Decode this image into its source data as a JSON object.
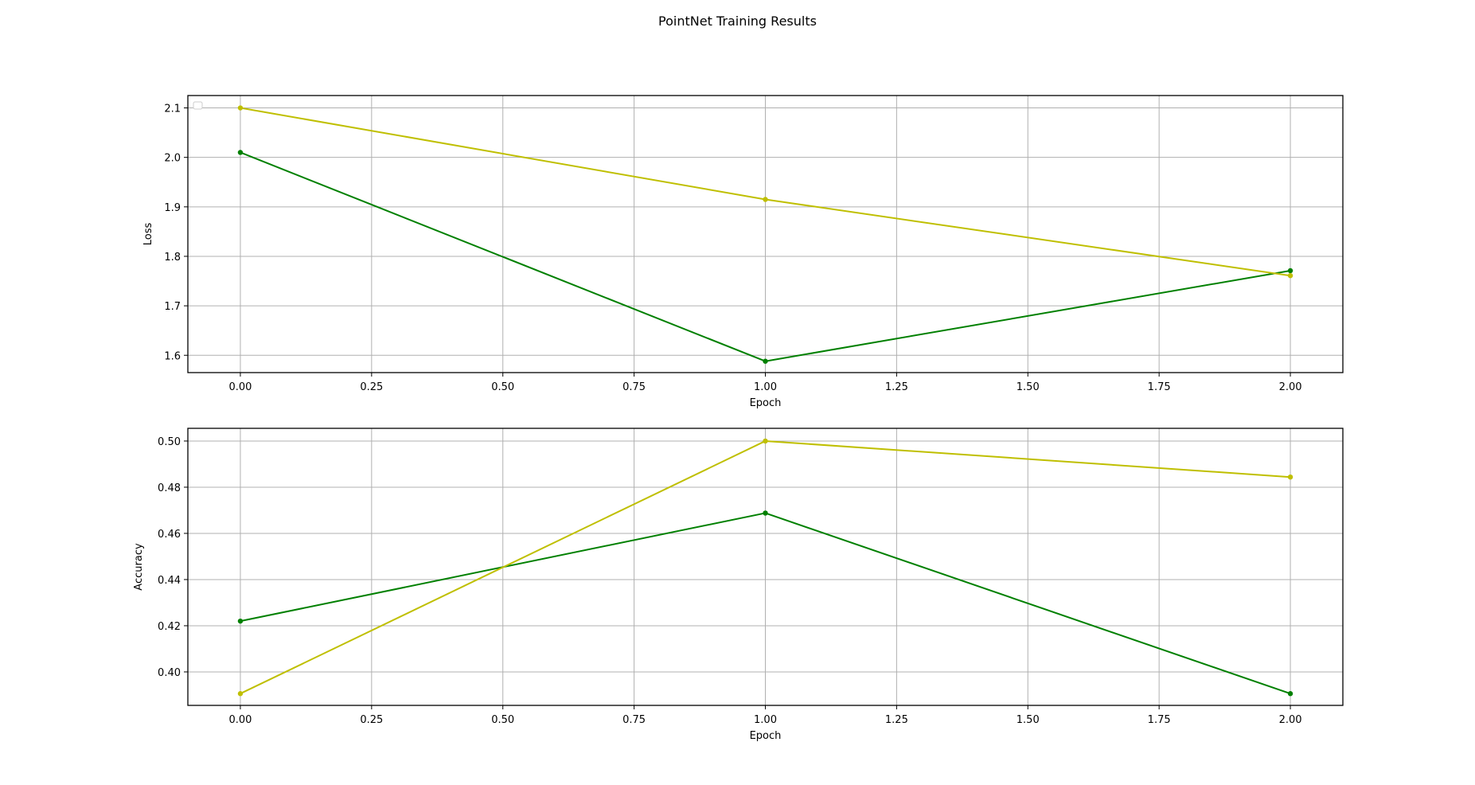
{
  "figure_title": "PointNet Training Results",
  "colors": {
    "series_a": "#008000",
    "series_b": "#bfbf00",
    "grid": "#b0b0b0"
  },
  "chart_data": [
    {
      "type": "line",
      "title": "",
      "xlabel": "Epoch",
      "ylabel": "Loss",
      "x": [
        0,
        1,
        2
      ],
      "xlim": [
        -0.1,
        2.1
      ],
      "ylim": [
        1.565,
        2.125
      ],
      "xticks": [
        "0.00",
        "0.25",
        "0.50",
        "0.75",
        "1.00",
        "1.25",
        "1.50",
        "1.75",
        "2.00"
      ],
      "yticks": [
        "1.6",
        "1.7",
        "1.8",
        "1.9",
        "2.0",
        "2.1"
      ],
      "grid": true,
      "legend": "upper left (empty)",
      "series": [
        {
          "values": [
            2.01,
            1.588,
            1.771
          ],
          "color": "#008000",
          "marker": "dot"
        },
        {
          "values": [
            2.1,
            1.915,
            1.761
          ],
          "color": "#bfbf00",
          "marker": "dot"
        }
      ]
    },
    {
      "type": "line",
      "title": "",
      "xlabel": "Epoch",
      "ylabel": "Accuracy",
      "x": [
        0,
        1,
        2
      ],
      "xlim": [
        -0.1,
        2.1
      ],
      "ylim": [
        0.3855,
        0.5055
      ],
      "xticks": [
        "0.00",
        "0.25",
        "0.50",
        "0.75",
        "1.00",
        "1.25",
        "1.50",
        "1.75",
        "2.00"
      ],
      "yticks": [
        "0.40",
        "0.42",
        "0.44",
        "0.46",
        "0.48",
        "0.50"
      ],
      "grid": true,
      "legend": "none",
      "series": [
        {
          "values": [
            0.422,
            0.4688,
            0.3906
          ],
          "color": "#008000",
          "marker": "dot"
        },
        {
          "values": [
            0.3906,
            0.5,
            0.4844
          ],
          "color": "#bfbf00",
          "marker": "dot"
        }
      ]
    }
  ]
}
